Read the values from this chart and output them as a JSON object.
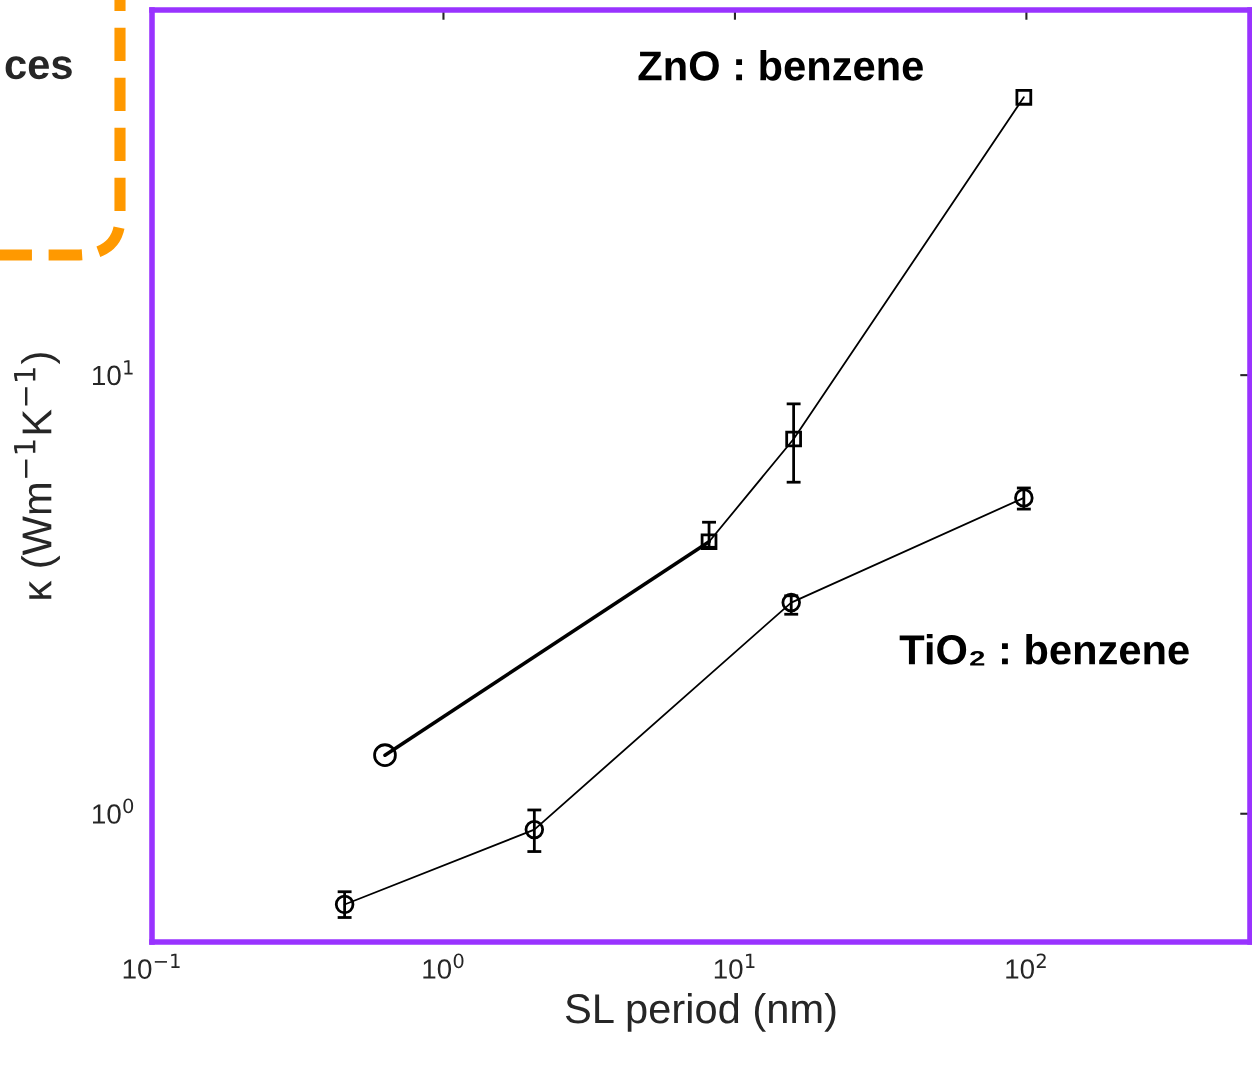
{
  "chart_data": {
    "type": "line",
    "xlabel": "SL period (nm)",
    "ylabel": "κ (Wm$^{−1}$K$^{−1}$)",
    "log": "xy",
    "xlim": [
      0.1,
      585
    ],
    "ylim": [
      0.51,
      68
    ],
    "xticks": [
      {
        "value": 0.1,
        "label": "10$^{−1}$"
      },
      {
        "value": 1,
        "label": "10$^{0}$"
      },
      {
        "value": 10,
        "label": "10$^{1}$"
      },
      {
        "value": 100,
        "label": "10$^{2}$"
      }
    ],
    "yticks": [
      {
        "value": 1,
        "label": "10$^{0}$"
      },
      {
        "value": 10,
        "label": "10$^{1}$"
      }
    ],
    "grid": false,
    "legend": false,
    "series": [
      {
        "name": "ZnO : benzene",
        "color": "#000000",
        "marker": "square",
        "x": [
          8.15,
          15.9,
          98
        ],
        "values": [
          4.17,
          7.15,
          43
        ],
        "errors": [
          [
            4.05,
            4.62
          ],
          [
            5.7,
            8.6
          ],
          null
        ]
      },
      {
        "color": "#000000",
        "marker": "none",
        "x": [
          0.63,
          8.15
        ],
        "values": [
          1.36,
          4.17
        ]
      },
      {
        "type": "scatter",
        "color": "#000000",
        "marker": "circle",
        "x": [
          0.63
        ],
        "values": [
          1.36
        ]
      },
      {
        "name": "TiO₂ : benzene",
        "color": "#000000",
        "marker": "circle",
        "x": [
          0.458,
          2.05,
          15.6,
          98
        ],
        "values": [
          0.621,
          0.92,
          3.03,
          5.25
        ],
        "errors": [
          [
            0.58,
            0.664
          ],
          [
            0.82,
            1.02
          ],
          [
            2.85,
            3.14
          ],
          [
            4.95,
            5.53
          ]
        ]
      }
    ],
    "annotations": [
      "ces"
    ]
  }
}
